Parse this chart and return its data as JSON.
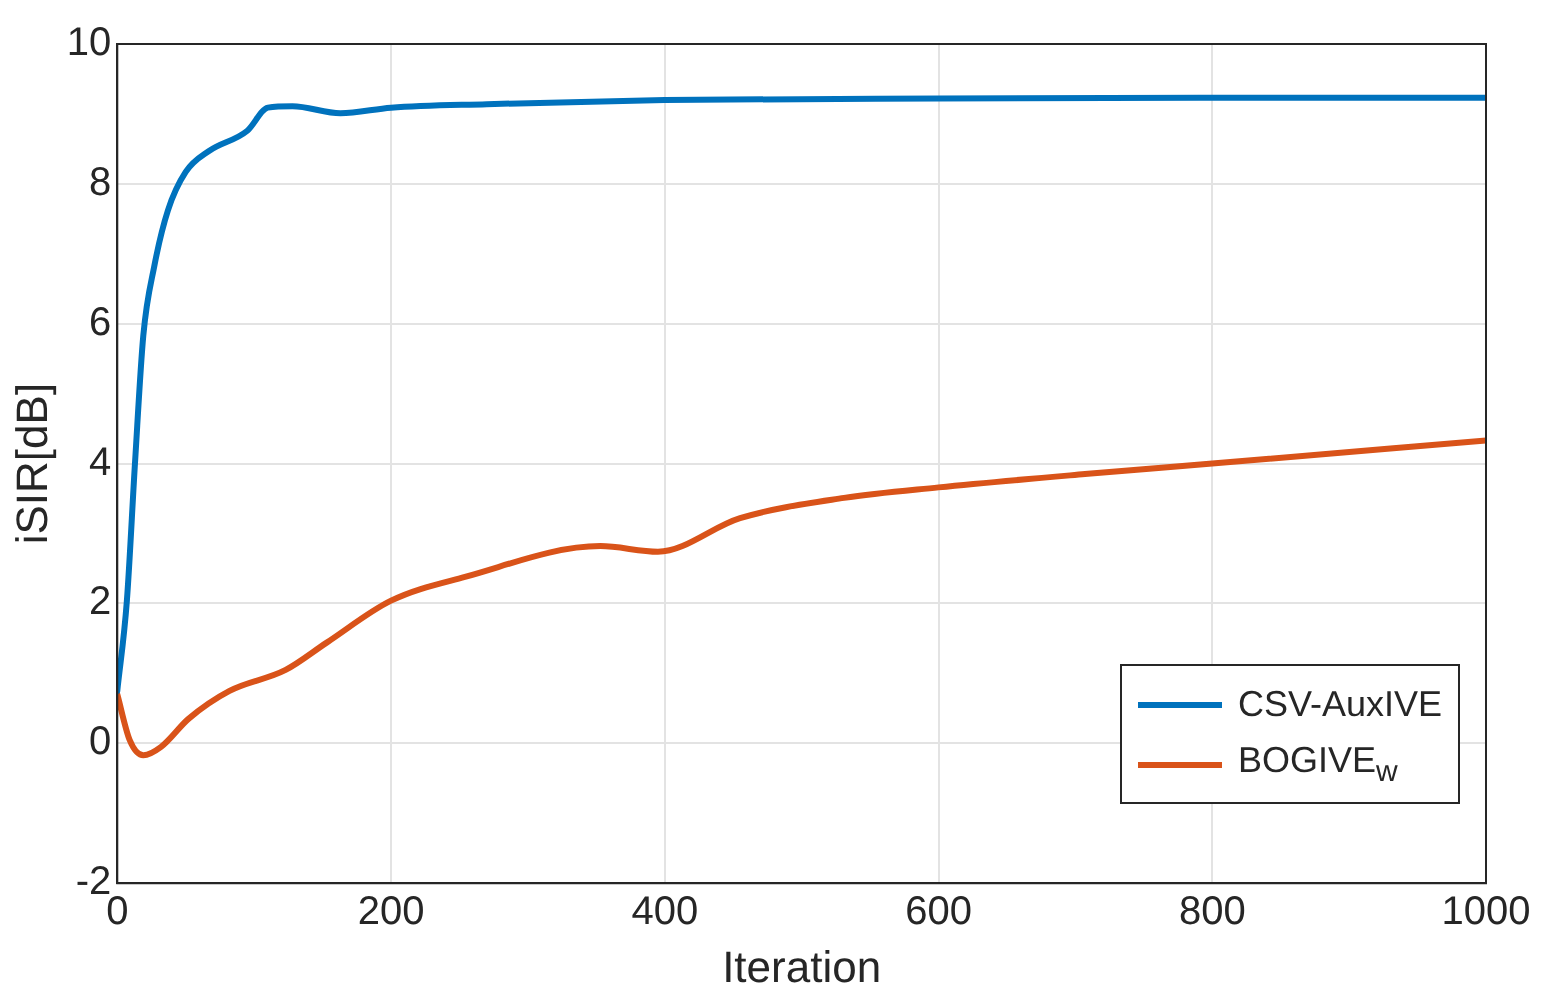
{
  "chart_data": {
    "type": "line",
    "xlabel": "Iteration",
    "ylabel": "iSIR[dB]",
    "xlim": [
      0,
      1000
    ],
    "xticks": [
      0,
      200,
      400,
      600,
      800,
      1000
    ],
    "ylim": [
      -2,
      10
    ],
    "yticks": [
      -2,
      0,
      2,
      4,
      6,
      8,
      10
    ],
    "grid": true,
    "legend": "bottom right",
    "marker": "none",
    "line_style": "solid",
    "series": [
      {
        "name": "CSV-AuxIVE",
        "color": "#0072bd",
        "x": [
          0,
          7,
          13,
          19,
          27,
          37,
          50,
          67,
          95,
          110,
          128,
          163,
          200,
          270,
          400,
          600,
          800,
          1000
        ],
        "values": [
          0.75,
          2.04,
          4.03,
          5.83,
          6.82,
          7.62,
          8.17,
          8.47,
          8.76,
          9.09,
          9.11,
          9.01,
          9.09,
          9.14,
          9.2,
          9.22,
          9.23,
          9.23
        ]
      },
      {
        "name": "BOGIVE$_{w}$",
        "color": "#d95319",
        "x": [
          0,
          9,
          19,
          32,
          52,
          82,
          123,
          153,
          200,
          254,
          353,
          395,
          455,
          531,
          600,
          707,
          800,
          1000
        ],
        "values": [
          0.7,
          0.05,
          -0.17,
          -0.05,
          0.35,
          0.75,
          1.05,
          1.44,
          2.04,
          2.38,
          2.82,
          2.74,
          3.22,
          3.51,
          3.66,
          3.85,
          4.0,
          4.33
        ]
      }
    ]
  }
}
